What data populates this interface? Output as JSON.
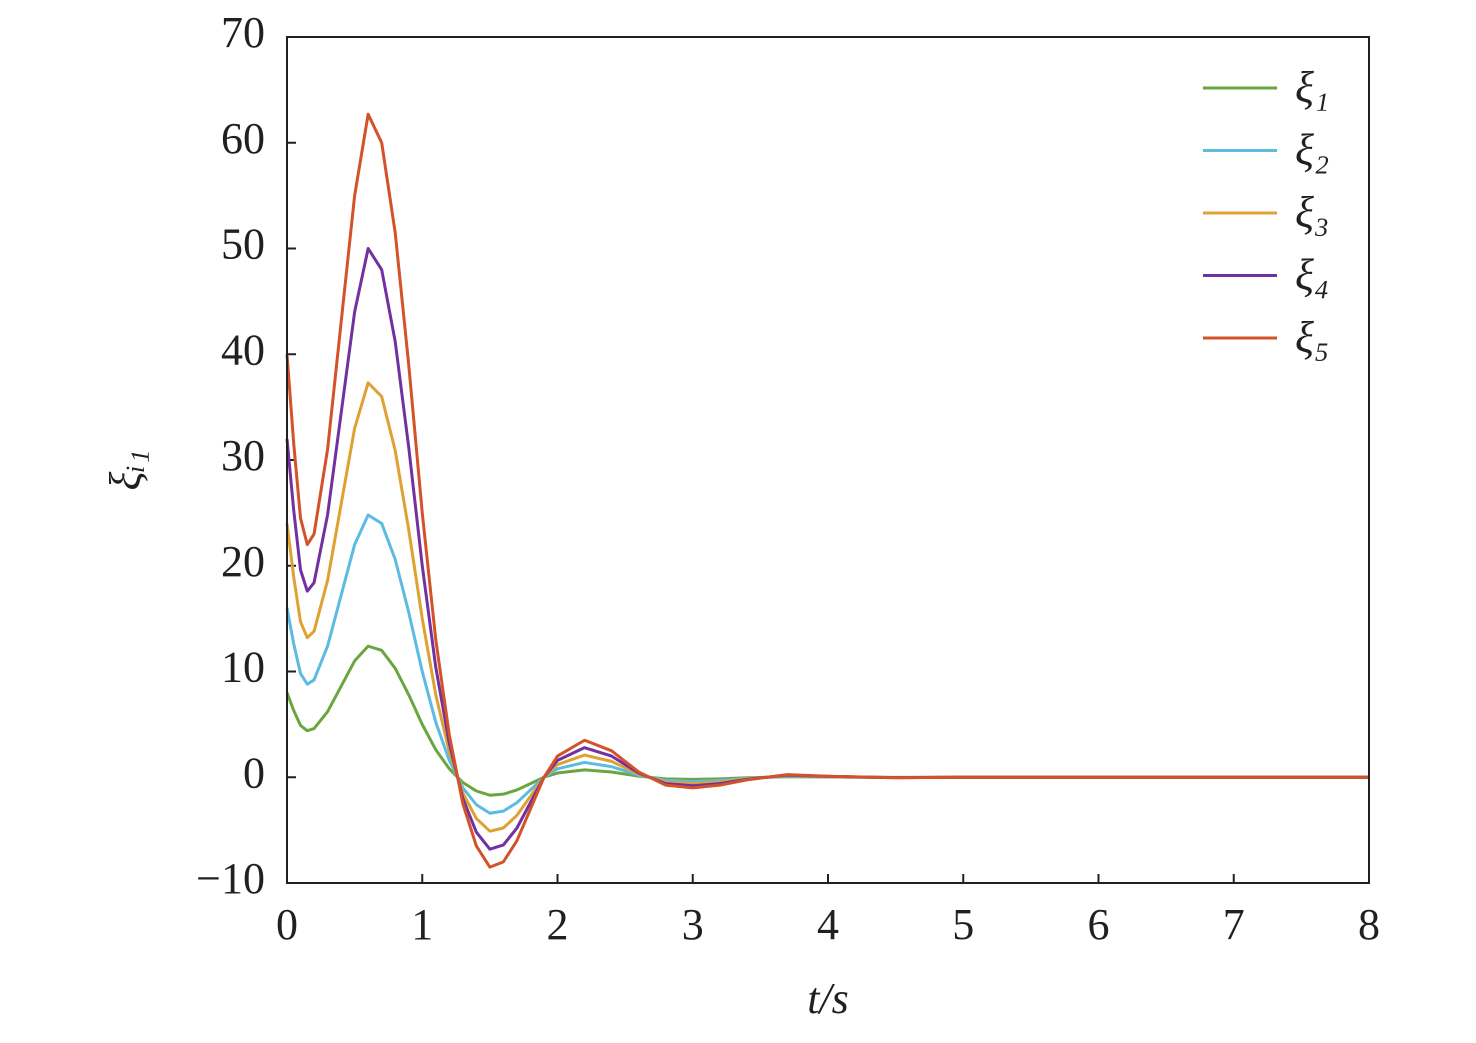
{
  "chart_data": {
    "type": "line",
    "x_label": "t/s",
    "y_label": "ξᵢ₁",
    "xlim": [
      0,
      8
    ],
    "xticks": [
      0,
      1,
      2,
      3,
      4,
      5,
      6,
      7,
      8
    ],
    "ylim": [
      -10,
      70
    ],
    "yticks": [
      {
        "value": -10,
        "label": "−10"
      },
      0,
      10,
      20,
      30,
      40,
      50,
      60,
      70
    ],
    "grid": false,
    "legend": "upper right",
    "x": [
      0,
      0.05,
      0.1,
      0.15,
      0.2,
      0.3,
      0.4,
      0.5,
      0.6,
      0.7,
      0.8,
      0.9,
      1.0,
      1.1,
      1.2,
      1.3,
      1.4,
      1.5,
      1.6,
      1.7,
      1.8,
      1.9,
      2.0,
      2.2,
      2.4,
      2.6,
      2.8,
      3.0,
      3.2,
      3.4,
      3.7,
      4.0,
      4.5,
      5,
      6,
      7,
      8
    ],
    "series": [
      {
        "name": "ξ₁",
        "color": "#6aa63f",
        "values": [
          8,
          6.3,
          4.9,
          4.4,
          4.6,
          6.2,
          8.6,
          11.0,
          12.4,
          12.0,
          10.3,
          7.8,
          5.0,
          2.6,
          0.8,
          -0.5,
          -1.3,
          -1.7,
          -1.6,
          -1.2,
          -0.6,
          0,
          0.4,
          0.7,
          0.5,
          0.1,
          -0.15,
          -0.2,
          -0.15,
          -0.05,
          0.05,
          0.02,
          -0.01,
          0,
          0,
          0,
          0
        ]
      },
      {
        "name": "ξ₂",
        "color": "#5bbbe3",
        "values": [
          16,
          12.6,
          9.8,
          8.8,
          9.2,
          12.4,
          17.2,
          22,
          24.8,
          24,
          20.6,
          15.6,
          10,
          5.2,
          1.6,
          -1,
          -2.6,
          -3.4,
          -3.2,
          -2.4,
          -1.2,
          0,
          0.8,
          1.4,
          1,
          0.2,
          -0.3,
          -0.4,
          -0.3,
          -0.1,
          0.1,
          0.04,
          -0.02,
          0,
          0,
          0,
          0
        ]
      },
      {
        "name": "ξ₃",
        "color": "#dfa232",
        "values": [
          24,
          18.9,
          14.7,
          13.2,
          13.8,
          18.6,
          25.8,
          33,
          37.3,
          36,
          30.9,
          23.4,
          15,
          7.8,
          2.4,
          -1.5,
          -3.9,
          -5.1,
          -4.8,
          -3.6,
          -1.8,
          0,
          1.2,
          2.1,
          1.5,
          0.3,
          -0.45,
          -0.6,
          -0.45,
          -0.15,
          0.15,
          0.06,
          -0.03,
          0,
          0,
          0,
          0
        ]
      },
      {
        "name": "ξ₄",
        "color": "#7131a0",
        "values": [
          32,
          25.2,
          19.6,
          17.6,
          18.4,
          24.8,
          34.4,
          44,
          50,
          48,
          41.2,
          31.2,
          20,
          10.4,
          3.2,
          -2,
          -5.2,
          -6.8,
          -6.4,
          -4.8,
          -2.4,
          0,
          1.6,
          2.8,
          2,
          0.4,
          -0.6,
          -0.8,
          -0.6,
          -0.2,
          0.2,
          0.08,
          -0.04,
          0,
          0,
          0,
          0
        ]
      },
      {
        "name": "ξ₅",
        "color": "#d3522a",
        "values": [
          40,
          31.5,
          24.5,
          22,
          23,
          31,
          43,
          55,
          62.7,
          60,
          51.5,
          39,
          25,
          13,
          4,
          -2.5,
          -6.5,
          -8.5,
          -8,
          -6,
          -3,
          0,
          2,
          3.5,
          2.5,
          0.5,
          -0.75,
          -1,
          -0.75,
          -0.25,
          0.25,
          0.1,
          -0.05,
          0,
          0,
          0,
          0
        ]
      }
    ]
  }
}
